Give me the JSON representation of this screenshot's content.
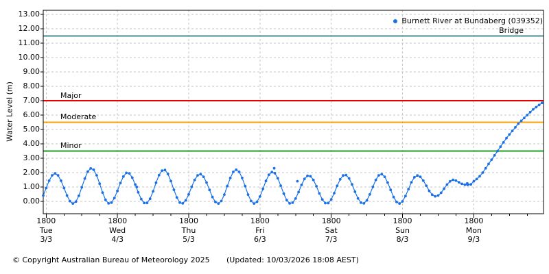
{
  "chart_data": {
    "type": "scatter",
    "title": "",
    "ylabel": "Water Level (m)",
    "xlabel": "",
    "ylim": [
      -0.9,
      13.25
    ],
    "x_range_hours": [
      -1,
      167.5
    ],
    "grid": "dashed",
    "legend": {
      "label": "Burnett River at Bundaberg (039352)",
      "marker_color": "#1a70e6",
      "position": "top-right"
    },
    "colors": {
      "series": "#1a70e6",
      "grid": "#c6c6c6",
      "axis": "#000000"
    },
    "y_axis": {
      "ticks": [
        {
          "value": 0,
          "label": "0.00"
        },
        {
          "value": 1,
          "label": "1.00"
        },
        {
          "value": 2,
          "label": "2.00"
        },
        {
          "value": 3,
          "label": "3.00"
        },
        {
          "value": 4,
          "label": "4.00"
        },
        {
          "value": 5,
          "label": "5.00"
        },
        {
          "value": 6,
          "label": "6.00"
        },
        {
          "value": 7,
          "label": "7.00"
        },
        {
          "value": 8,
          "label": "8.00"
        },
        {
          "value": 9,
          "label": "9.00"
        },
        {
          "value": 10,
          "label": "10.00"
        },
        {
          "value": 11,
          "label": "11.00"
        },
        {
          "value": 12,
          "label": "12.00"
        },
        {
          "value": 13,
          "label": "13.00"
        }
      ]
    },
    "x_axis": {
      "minor_tick_interval_hours": 6,
      "ticks": [
        {
          "hour": 0,
          "time": "1800",
          "day": "Tue",
          "date": "3/3"
        },
        {
          "hour": 24,
          "time": "1800",
          "day": "Wed",
          "date": "4/3"
        },
        {
          "hour": 48,
          "time": "1800",
          "day": "Thu",
          "date": "5/3"
        },
        {
          "hour": 72,
          "time": "1800",
          "day": "Fri",
          "date": "6/3"
        },
        {
          "hour": 96,
          "time": "1800",
          "day": "Sat",
          "date": "7/3"
        },
        {
          "hour": 120,
          "time": "1800",
          "day": "Sun",
          "date": "8/3"
        },
        {
          "hour": 144,
          "time": "1800",
          "day": "Mon",
          "date": "9/3"
        }
      ]
    },
    "reference_lines": [
      {
        "label": "Bridge",
        "value": 11.5,
        "color": "#4d8b94",
        "width": 3
      },
      {
        "label": "Major",
        "value": 7.0,
        "color": "#e80000",
        "width": 2
      },
      {
        "label": "Moderate",
        "value": 5.5,
        "color": "#ffa000",
        "width": 2
      },
      {
        "label": "Minor",
        "value": 3.5,
        "color": "#1e9c1e",
        "width": 2
      }
    ],
    "series": [
      {
        "name": "Burnett River at Bundaberg (039352)",
        "start_hour": -1,
        "step_hours": 1,
        "values": [
          0.41,
          0.93,
          1.44,
          1.81,
          1.95,
          1.81,
          1.44,
          0.93,
          0.41,
          0.02,
          -0.15,
          -0.02,
          0.39,
          0.98,
          1.59,
          2.07,
          2.29,
          2.2,
          1.81,
          1.23,
          0.61,
          0.11,
          -0.14,
          -0.08,
          0.24,
          0.73,
          1.28,
          1.73,
          1.98,
          1.95,
          1.65,
          1.17,
          0.63,
          0.16,
          -0.11,
          -0.11,
          0.18,
          0.7,
          1.3,
          1.82,
          2.14,
          2.18,
          1.91,
          1.41,
          0.81,
          0.27,
          -0.08,
          -0.14,
          0.07,
          0.49,
          1.01,
          1.49,
          1.81,
          1.89,
          1.71,
          1.31,
          0.8,
          0.3,
          -0.04,
          -0.15,
          0.03,
          0.47,
          1.06,
          1.63,
          2.05,
          2.2,
          2.05,
          1.63,
          1.06,
          0.47,
          0.03,
          -0.15,
          -0.03,
          0.34,
          0.87,
          1.42,
          1.85,
          2.04,
          1.96,
          1.61,
          1.09,
          0.54,
          0.09,
          -0.14,
          -0.09,
          0.2,
          0.65,
          1.15,
          1.56,
          1.78,
          1.75,
          1.49,
          1.05,
          0.55,
          0.13,
          -0.12,
          -0.12,
          0.14,
          0.57,
          1.08,
          1.53,
          1.8,
          1.83,
          1.6,
          1.18,
          0.67,
          0.21,
          -0.09,
          -0.14,
          0.07,
          0.49,
          1.01,
          1.49,
          1.81,
          1.89,
          1.71,
          1.31,
          0.8,
          0.3,
          -0.04,
          -0.15,
          0.0,
          0.37,
          0.85,
          1.33,
          1.67,
          1.8,
          1.71,
          1.45,
          1.09,
          0.73,
          0.46,
          0.35,
          0.41,
          0.6,
          0.88,
          1.17,
          1.39,
          1.5,
          1.45,
          1.33,
          1.22,
          1.16,
          1.15,
          1.18,
          1.4,
          1.55,
          1.75,
          2.0,
          2.3,
          2.6,
          2.9,
          3.2,
          3.5,
          3.8,
          4.1,
          4.4,
          4.65,
          4.9,
          5.15,
          5.4,
          5.6,
          5.8,
          6.0,
          6.2,
          6.4,
          6.55,
          6.7,
          6.85
        ],
        "extra_points": [
          [
            30.5,
            1.0
          ],
          [
            76.8,
            2.3
          ],
          [
            84.6,
            1.4
          ],
          [
            141.8,
            1.25
          ]
        ]
      }
    ]
  },
  "footer": {
    "copyright": "© Copyright Australian Bureau of Meteorology 2025",
    "updated": "(Updated: 10/03/2026 18:08 AEST)"
  }
}
